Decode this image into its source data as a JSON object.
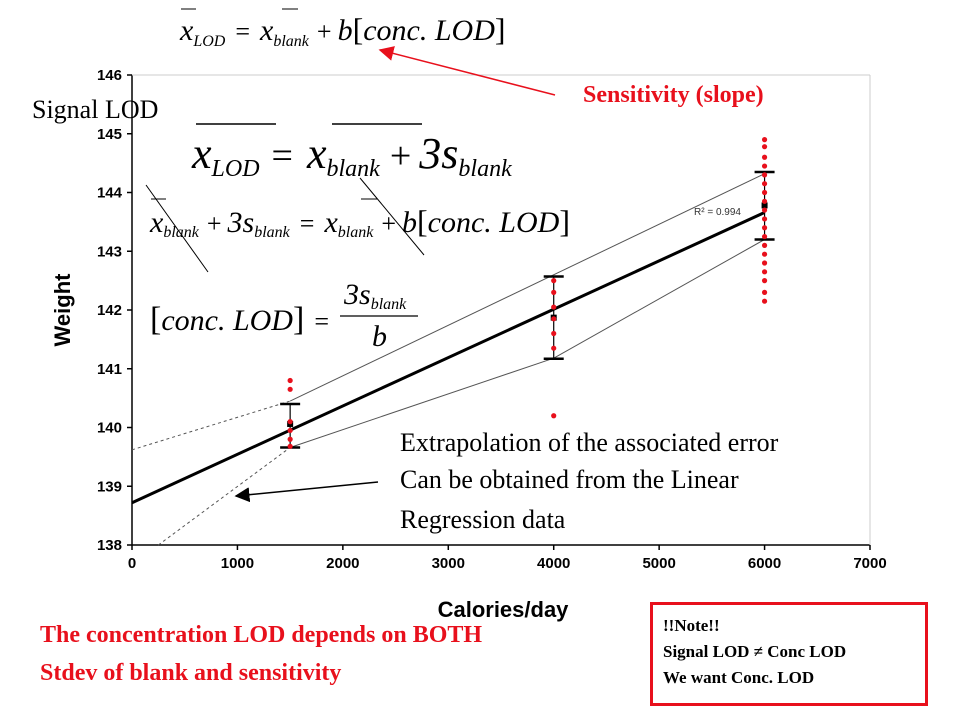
{
  "colors": {
    "accent": "#e8101c",
    "fit_line": "#000000",
    "points": "#e8101c",
    "band": "#555555"
  },
  "chart_data": {
    "type": "scatter",
    "xlabel": "Calories/day",
    "ylabel": "Weight",
    "xlim": [
      0,
      7000
    ],
    "ylim": [
      138,
      146
    ],
    "x_ticks": [
      "0",
      "1000",
      "2000",
      "3000",
      "4000",
      "5000",
      "6000",
      "7000"
    ],
    "y_ticks": [
      "138",
      "139",
      "140",
      "141",
      "142",
      "143",
      "144",
      "145",
      "146"
    ],
    "grid": false,
    "r_squared_label": "R² = 0.994",
    "fit_line": {
      "x": [
        0,
        6000
      ],
      "y": [
        138.72,
        143.66
      ]
    },
    "upper_band": {
      "x": [
        0,
        1500,
        6000
      ],
      "y": [
        139.62,
        140.45,
        144.32
      ]
    },
    "lower_band": {
      "x": [
        250,
        1500,
        4000,
        6000
      ],
      "y": [
        138.0,
        139.66,
        141.18,
        143.2
      ]
    },
    "error_bars": [
      {
        "x": 1500,
        "mean": 140.06,
        "low": 139.66,
        "high": 140.4
      },
      {
        "x": 4000,
        "mean": 141.87,
        "low": 141.17,
        "high": 142.57
      },
      {
        "x": 6000,
        "mean": 143.78,
        "low": 143.2,
        "high": 144.35
      }
    ],
    "points": [
      {
        "x": 1500,
        "y": 140.8
      },
      {
        "x": 1500,
        "y": 140.65
      },
      {
        "x": 1500,
        "y": 140.1
      },
      {
        "x": 1500,
        "y": 139.95
      },
      {
        "x": 1500,
        "y": 139.8
      },
      {
        "x": 1500,
        "y": 139.68
      },
      {
        "x": 4000,
        "y": 142.5
      },
      {
        "x": 4000,
        "y": 142.3
      },
      {
        "x": 4000,
        "y": 142.05
      },
      {
        "x": 4000,
        "y": 141.85
      },
      {
        "x": 4000,
        "y": 141.6
      },
      {
        "x": 4000,
        "y": 141.35
      },
      {
        "x": 4000,
        "y": 140.2
      },
      {
        "x": 6000,
        "y": 144.9
      },
      {
        "x": 6000,
        "y": 144.78
      },
      {
        "x": 6000,
        "y": 144.6
      },
      {
        "x": 6000,
        "y": 144.45
      },
      {
        "x": 6000,
        "y": 144.3
      },
      {
        "x": 6000,
        "y": 144.15
      },
      {
        "x": 6000,
        "y": 144.0
      },
      {
        "x": 6000,
        "y": 143.85
      },
      {
        "x": 6000,
        "y": 143.7
      },
      {
        "x": 6000,
        "y": 143.55
      },
      {
        "x": 6000,
        "y": 143.4
      },
      {
        "x": 6000,
        "y": 143.25
      },
      {
        "x": 6000,
        "y": 143.1
      },
      {
        "x": 6000,
        "y": 142.95
      },
      {
        "x": 6000,
        "y": 142.8
      },
      {
        "x": 6000,
        "y": 142.65
      },
      {
        "x": 6000,
        "y": 142.5
      },
      {
        "x": 6000,
        "y": 142.3
      },
      {
        "x": 6000,
        "y": 142.15
      }
    ]
  },
  "annotations": {
    "signal_lod_label": "Signal LOD",
    "sensitivity_label": "Sensitivity (slope)",
    "extrapolation_line1": "Extrapolation of the associated error",
    "extrapolation_line2": "Can be obtained from the Linear",
    "extrapolation_line3": "Regression data",
    "conclusion_line1": "The concentration LOD depends on BOTH",
    "conclusion_line2": "Stdev of blank and sensitivity",
    "note_title": "!!Note!!",
    "note_line1": "Signal LOD ≠ Conc LOD",
    "note_line2": "We want Conc. LOD"
  },
  "equations": {
    "eq1": {
      "lhs_x": "x",
      "lhs_sub": "LOD",
      "eq": "=",
      "x2": "x",
      "x2_sub": "blank",
      "plus": "+",
      "b": "b",
      "lbr": "[",
      "conc": "conc. LOD",
      "rbr": "]"
    },
    "eq2": {
      "lhs_x": "x",
      "lhs_sub": "LOD",
      "eq": "=",
      "x2": "x",
      "x2_sub": "blank",
      "plus": "+",
      "three_s": "3s",
      "s_sub": "blank"
    },
    "eq3": {
      "x1": "x",
      "x1_sub": "blank",
      "plus1": "+",
      "three_s": "3s",
      "s_sub": "blank",
      "eq": "=",
      "x2": "x",
      "x2_sub": "blank",
      "plus2": "+",
      "b": "b",
      "lbr": "[",
      "conc": "conc. LOD",
      "rbr": "]"
    },
    "eq4": {
      "lbr": "[",
      "conc": "conc. LOD",
      "rbr": "]",
      "eq": "=",
      "num": "3s",
      "num_sub": "blank",
      "den": "b"
    }
  }
}
